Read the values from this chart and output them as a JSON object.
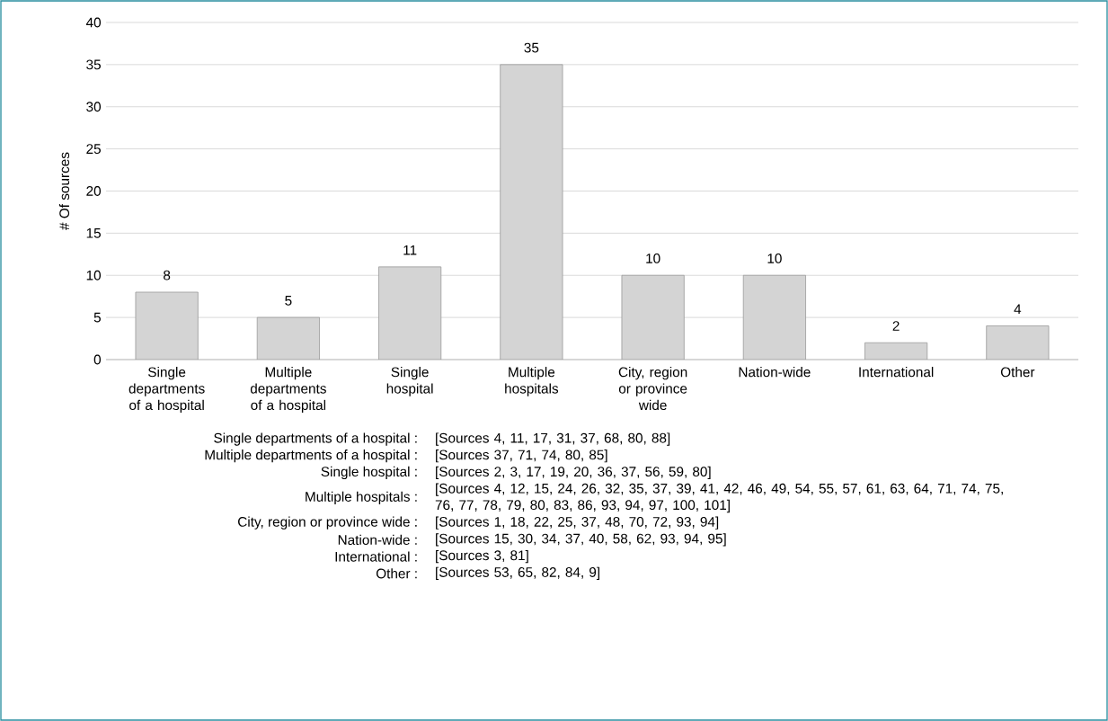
{
  "chart_data": {
    "type": "bar",
    "ylabel": "# Of sources",
    "categories": [
      "Single departments of a hospital",
      "Multiple departments of a hospital",
      "Single hospital",
      "Multiple hospitals",
      "City, region or province wide",
      "Nation-wide",
      "International",
      "Other"
    ],
    "values": [
      8,
      5,
      11,
      35,
      10,
      10,
      2,
      4
    ],
    "color": "#d4d4d4",
    "data_labels": true,
    "grid": "y",
    "ylim": [
      0,
      40
    ],
    "yticks": [
      0,
      5,
      10,
      15,
      20,
      25,
      30,
      35,
      40
    ],
    "annotations": [
      "Single departments of a hospital :",
      "[Sources 4, 11, 17, 31, 37, 68, 80, 88]",
      "Multiple departments of a hospital :",
      "[Sources 37, 71, 74, 80, 85]",
      "Single hospital :",
      "[Sources 2, 3, 17, 19, 20, 36, 37, 56, 59, 80]",
      "Multiple hospitals :",
      "[Sources 4, 12, 15, 24, 26, 32, 35, 37, 39, 41, 42, 46, 49, 54, 55, 57, 61, 63, 64, 71, 74, 75, 76, 77, 78, 79, 80, 83, 86, 93, 94, 97, 100, 101]",
      "City, region or province wide :",
      "[Sources 1, 18, 22, 25, 37, 48, 70, 72, 93, 94]",
      "Nation-wide :",
      "[Sources 15, 30, 34, 37, 40, 58, 62, 93, 94, 95]",
      "International :",
      "[Sources 3, 81]",
      "Other :",
      "[Sources 53, 65, 82, 84, 9]"
    ]
  }
}
